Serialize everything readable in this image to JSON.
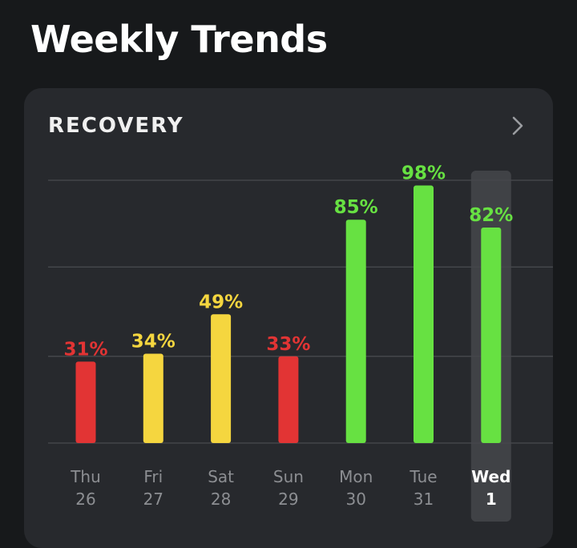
{
  "page": {
    "title": "Weekly Trends"
  },
  "card": {
    "title": "RECOVERY",
    "chevron_icon": "chevron-right-icon"
  },
  "colors": {
    "background": "#17191b",
    "card": "#27292d",
    "red": "#e23434",
    "yellow": "#f5d63f",
    "green": "#67e142",
    "axis_label": "#8c8e92",
    "selected_label": "#ffffff",
    "selected_highlight": "#45474b",
    "gridline": "#4a4c50"
  },
  "chart_data": {
    "type": "bar",
    "title": "RECOVERY",
    "categories": [
      "Thu 26",
      "Fri 27",
      "Sat 28",
      "Sun 29",
      "Mon 30",
      "Tue 31",
      "Wed 1"
    ],
    "day_labels": [
      {
        "day": "Thu",
        "date": "26"
      },
      {
        "day": "Fri",
        "date": "27"
      },
      {
        "day": "Sat",
        "date": "28"
      },
      {
        "day": "Sun",
        "date": "29"
      },
      {
        "day": "Mon",
        "date": "30"
      },
      {
        "day": "Tue",
        "date": "31"
      },
      {
        "day": "Wed",
        "date": "1"
      }
    ],
    "values": [
      31,
      34,
      49,
      33,
      85,
      98,
      82
    ],
    "value_labels": [
      "31%",
      "34%",
      "49%",
      "33%",
      "85%",
      "98%",
      "82%"
    ],
    "bar_colors": [
      "red",
      "yellow",
      "yellow",
      "red",
      "green",
      "green",
      "green"
    ],
    "selected_index": 6,
    "ylim": [
      0,
      100
    ],
    "gridlines": [
      0,
      33,
      67,
      100
    ],
    "grid": true,
    "legend": "none"
  }
}
